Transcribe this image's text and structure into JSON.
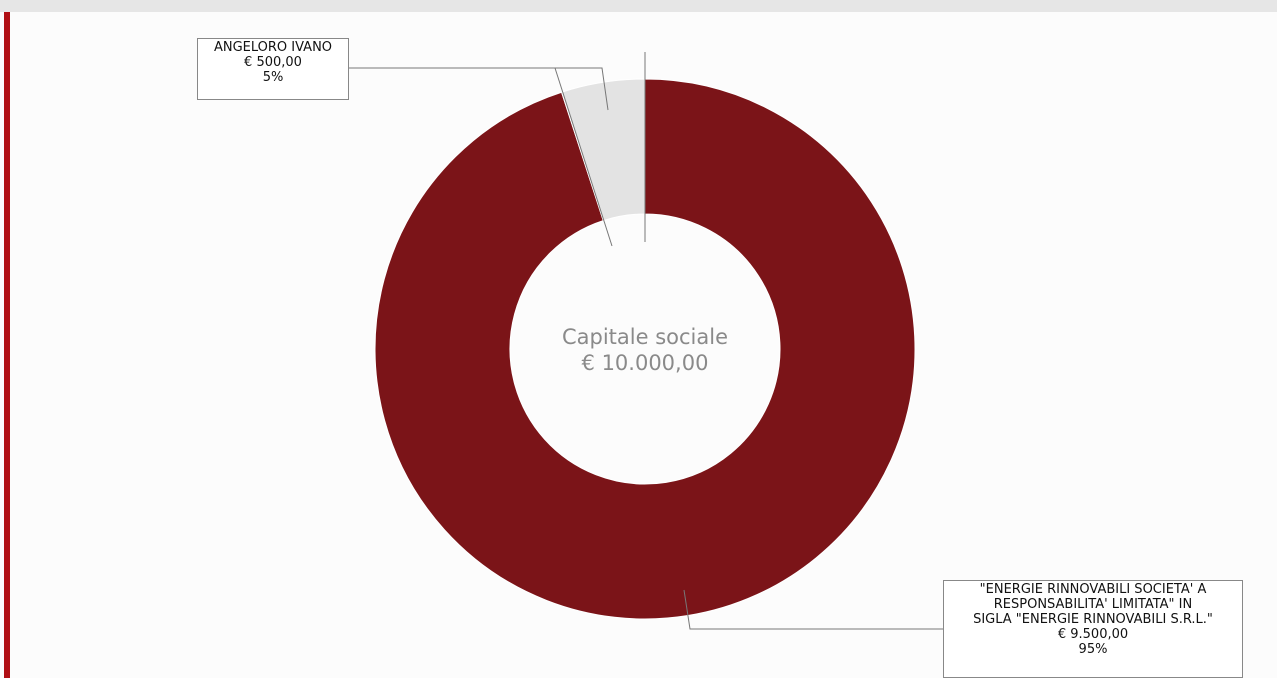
{
  "colors": {
    "accent": "#b00f14",
    "slice_major": "#7b1418",
    "slice_minor": "#e3e3e3"
  },
  "chart_data": {
    "type": "pie",
    "style": "donut",
    "center_label": [
      "Capitale sociale",
      "€ 10.000,00"
    ],
    "slices": [
      {
        "name": "ANGELORO IVANO",
        "amount": "€ 500,00",
        "percent_label": "5%",
        "value": 500,
        "color": "#e3e3e3"
      },
      {
        "name": "\"ENERGIE RINNOVABILI SOCIETA' A\nRESPONSABILITA' LIMITATA\" IN\nSIGLA \"ENERGIE RINNOVABILI S.R.L.\"",
        "amount": "€ 9.500,00",
        "percent_label": "95%",
        "value": 9500,
        "color": "#7b1418"
      }
    ],
    "grid": false
  }
}
